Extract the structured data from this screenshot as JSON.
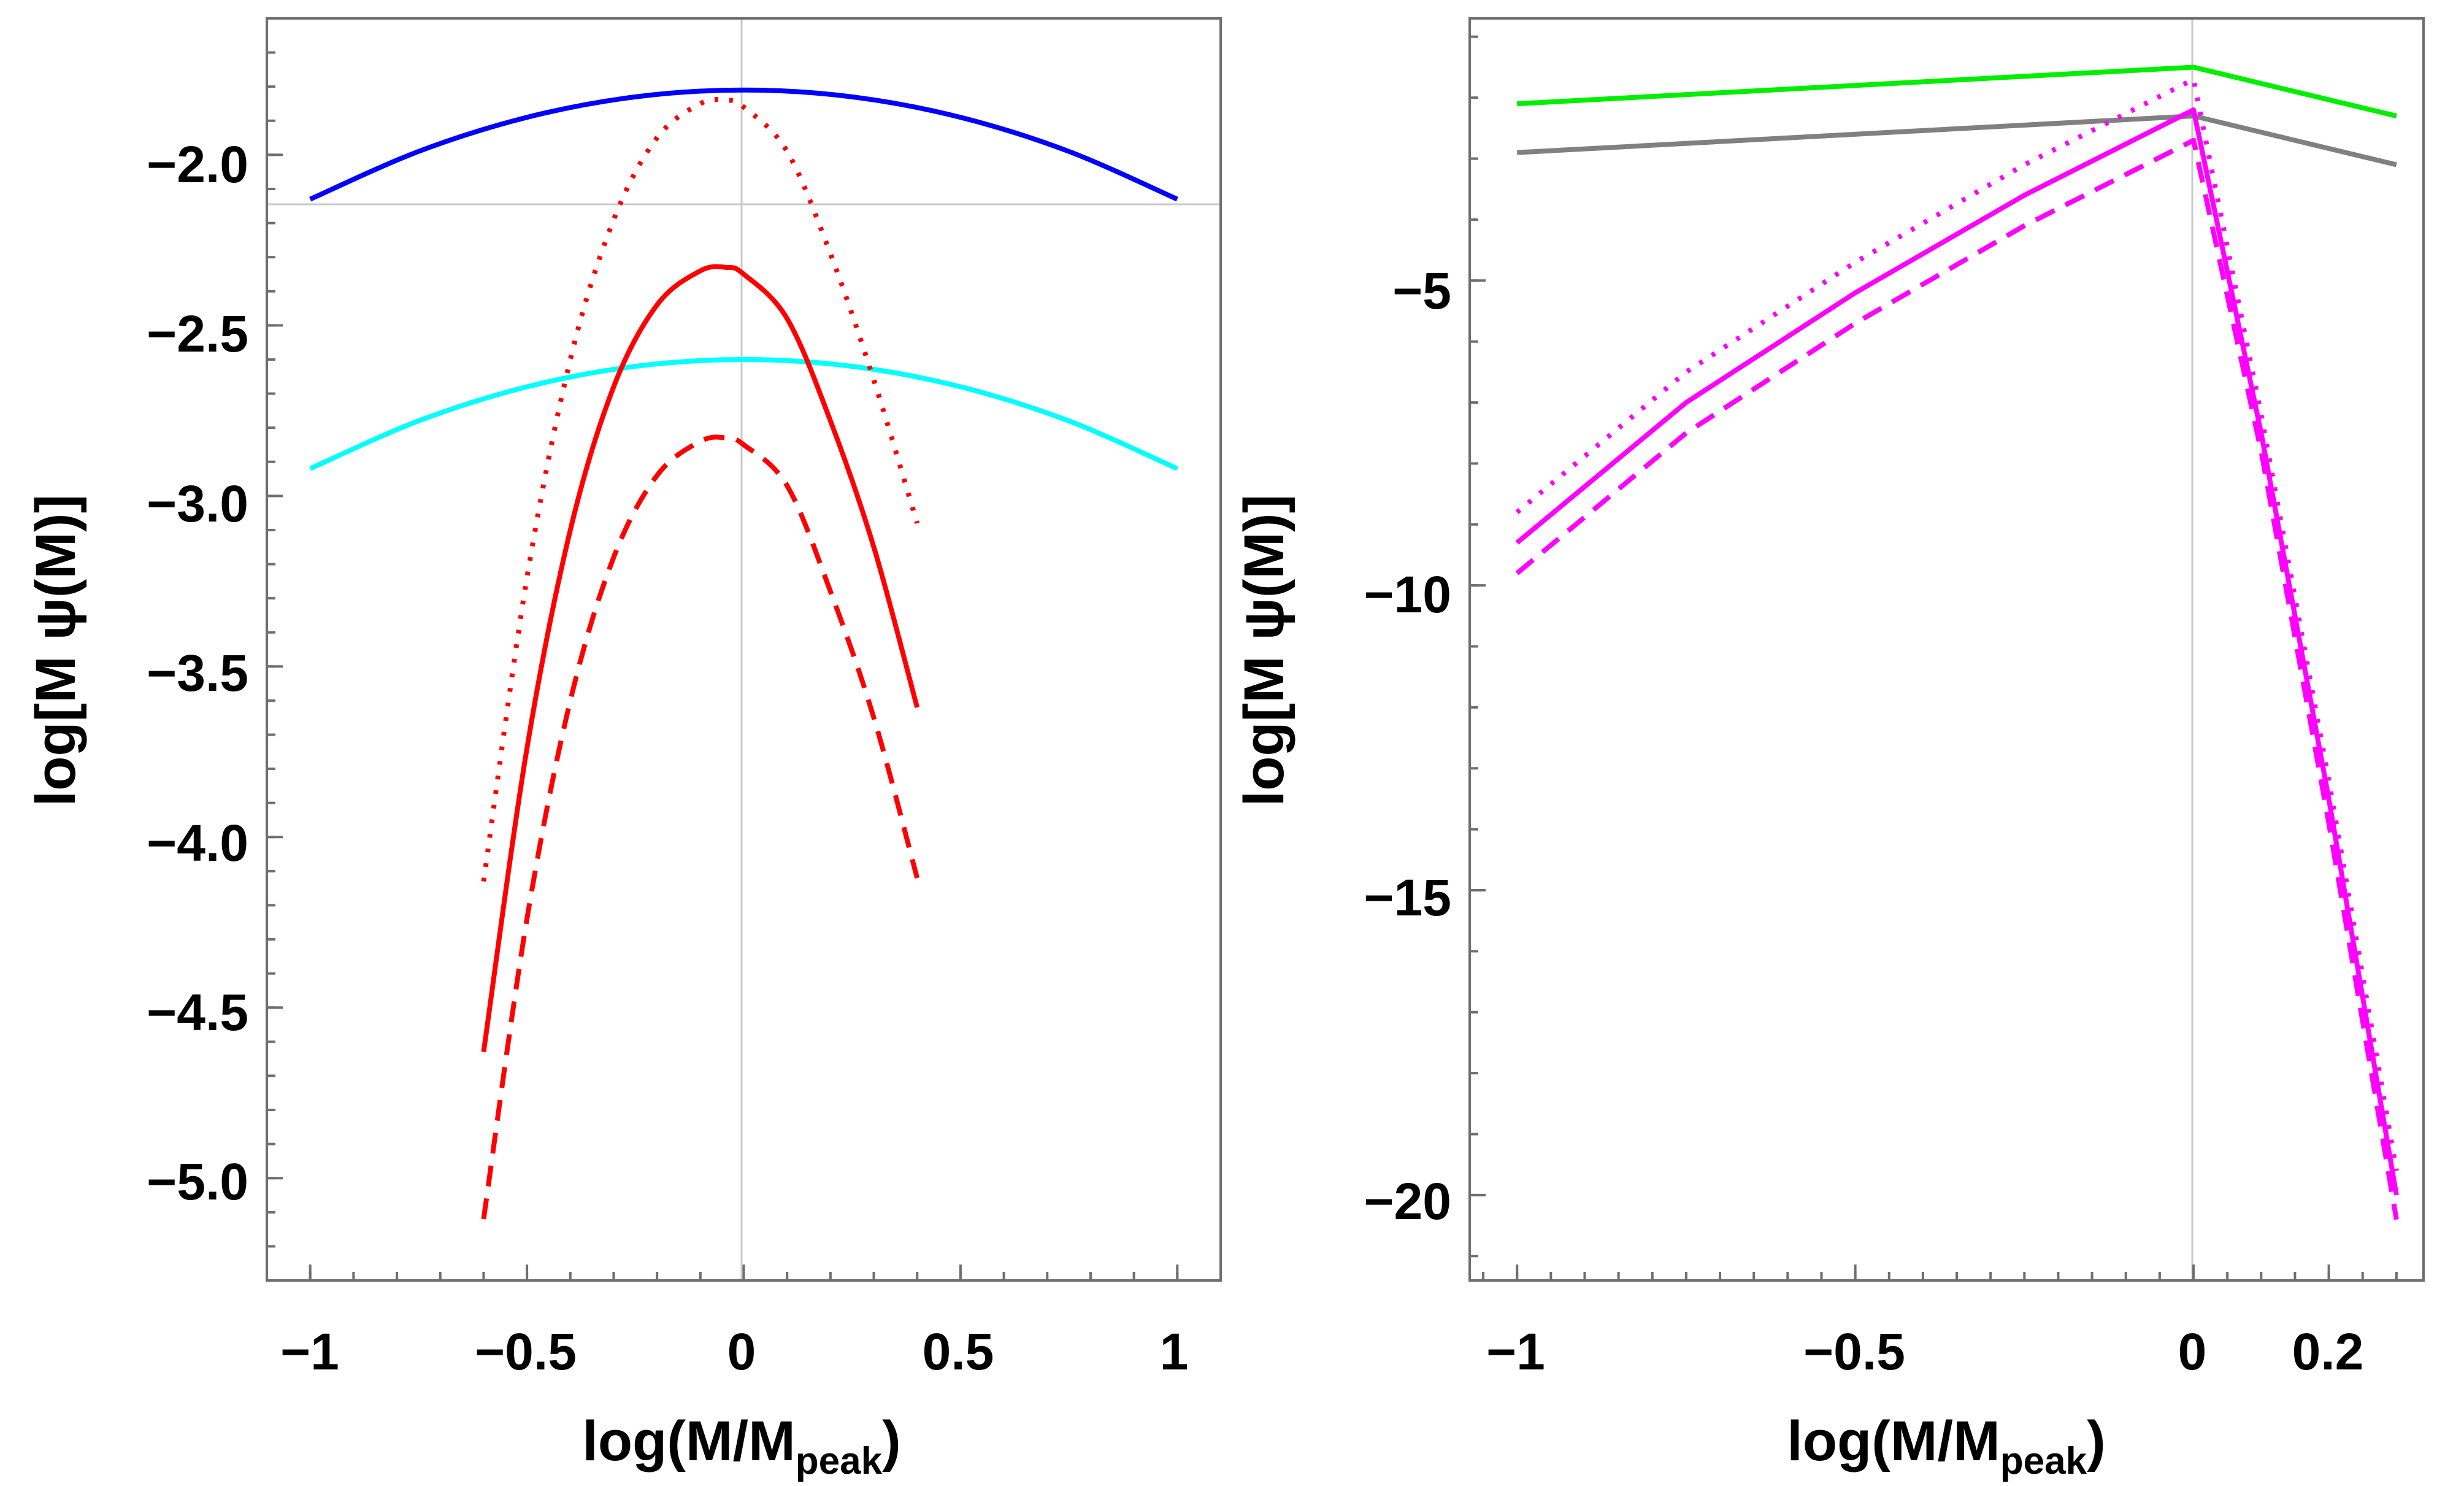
{
  "chart_data": [
    {
      "type": "line",
      "panel": "left",
      "xlabel": "log(M/M",
      "xlabel_sub": "peak",
      "xlabel_close": ")",
      "ylabel": "log[M ψ(M)]",
      "xlim": [
        -1.1,
        1.1
      ],
      "ylim": [
        -5.3,
        -1.6
      ],
      "xticks": [
        -1,
        -0.5,
        0,
        0.5,
        1
      ],
      "xtick_labels": [
        "−1",
        "−0.5",
        "0",
        "0.5",
        "1"
      ],
      "yticks": [
        -2.0,
        -2.5,
        -3.0,
        -3.5,
        -4.0,
        -4.5,
        -5.0
      ],
      "ytick_labels": [
        "−2.0",
        "−2.5",
        "−3.0",
        "−3.5",
        "−4.0",
        "−4.5",
        "−5.0"
      ],
      "reference_lines": {
        "x": 0,
        "y": -2.13
      },
      "series": [
        {
          "name": "blue solid",
          "color": "#0000ff",
          "dash": "solid",
          "x": [
            -1.0,
            -0.75,
            -0.5,
            -0.25,
            0.0,
            0.25,
            0.5,
            0.75,
            1.0
          ],
          "y": [
            -2.13,
            -1.99,
            -1.89,
            -1.83,
            -1.81,
            -1.83,
            -1.89,
            -1.99,
            -2.13
          ]
        },
        {
          "name": "cyan solid",
          "color": "#00ffff",
          "dash": "solid",
          "x": [
            -1.0,
            -0.75,
            -0.5,
            -0.25,
            0.0,
            0.25,
            0.5,
            0.75,
            1.0
          ],
          "y": [
            -2.92,
            -2.78,
            -2.68,
            -2.62,
            -2.6,
            -2.62,
            -2.68,
            -2.78,
            -2.92
          ]
        },
        {
          "name": "red solid",
          "color": "#ff0000",
          "dash": "solid",
          "x": [
            -0.6,
            -0.5,
            -0.4,
            -0.3,
            -0.2,
            -0.1,
            -0.04,
            0.0,
            0.1,
            0.2,
            0.3,
            0.4
          ],
          "y": [
            -4.63,
            -3.74,
            -3.1,
            -2.68,
            -2.44,
            -2.34,
            -2.33,
            -2.35,
            -2.48,
            -2.78,
            -3.15,
            -3.62
          ]
        },
        {
          "name": "red dashed",
          "color": "#ff0000",
          "dash": "dashed",
          "x": [
            -0.6,
            -0.5,
            -0.4,
            -0.3,
            -0.2,
            -0.1,
            -0.04,
            0.0,
            0.1,
            0.2,
            0.3,
            0.4
          ],
          "y": [
            -5.12,
            -4.24,
            -3.6,
            -3.18,
            -2.94,
            -2.84,
            -2.83,
            -2.85,
            -2.97,
            -3.28,
            -3.65,
            -4.12
          ]
        },
        {
          "name": "red dotted",
          "color": "#ff0000",
          "dash": "dotted",
          "x": [
            -0.6,
            -0.5,
            -0.4,
            -0.3,
            -0.2,
            -0.1,
            -0.04,
            0.0,
            0.1,
            0.2,
            0.3,
            0.4
          ],
          "y": [
            -4.13,
            -3.24,
            -2.6,
            -2.19,
            -1.95,
            -1.85,
            -1.84,
            -1.86,
            -1.99,
            -2.29,
            -2.66,
            -3.08
          ]
        }
      ]
    },
    {
      "type": "line",
      "panel": "right",
      "xlabel": "log(M/M",
      "xlabel_sub": "peak",
      "xlabel_close": ")",
      "ylabel": "log[M ψ(M)]",
      "xlim": [
        -1.07,
        0.34
      ],
      "ylim": [
        -21.4,
        -0.7
      ],
      "xticks": [
        -1,
        -0.5,
        0,
        0.2
      ],
      "xtick_labels": [
        "−1",
        "−0.5",
        "0",
        "0.2"
      ],
      "yticks": [
        -5,
        -10,
        -15,
        -20
      ],
      "ytick_labels": [
        "−5",
        "−10",
        "−15",
        "−20"
      ],
      "reference_lines": {
        "x": 0
      },
      "series": [
        {
          "name": "green solid",
          "color": "#00ee00",
          "dash": "solid",
          "x": [
            -1.0,
            0.0,
            0.3
          ],
          "y": [
            -2.1,
            -1.5,
            -2.3
          ]
        },
        {
          "name": "gray solid",
          "color": "#808080",
          "dash": "solid",
          "x": [
            -1.0,
            0.0,
            0.3
          ],
          "y": [
            -2.9,
            -2.3,
            -3.1
          ]
        },
        {
          "name": "magenta solid",
          "color": "#ff00ff",
          "dash": "solid",
          "x": [
            -1.0,
            -0.75,
            -0.5,
            -0.25,
            0.0,
            0.1,
            0.2,
            0.3
          ],
          "y": [
            -9.3,
            -7.0,
            -5.2,
            -3.6,
            -2.2,
            -7.5,
            -13.5,
            -20.0
          ]
        },
        {
          "name": "magenta dashed",
          "color": "#ff00ff",
          "dash": "dashed",
          "x": [
            -1.0,
            -0.75,
            -0.5,
            -0.25,
            0.0,
            0.1,
            0.2,
            0.3
          ],
          "y": [
            -9.8,
            -7.5,
            -5.7,
            -4.1,
            -2.7,
            -7.8,
            -13.9,
            -20.4
          ]
        },
        {
          "name": "magenta dotted",
          "color": "#ff00ff",
          "dash": "dotted",
          "x": [
            -1.0,
            -0.75,
            -0.5,
            -0.25,
            0.0,
            0.1,
            0.2,
            0.3
          ],
          "y": [
            -8.8,
            -6.5,
            -4.7,
            -3.1,
            -1.7,
            -7.2,
            -13.2,
            -19.6
          ]
        }
      ]
    }
  ]
}
